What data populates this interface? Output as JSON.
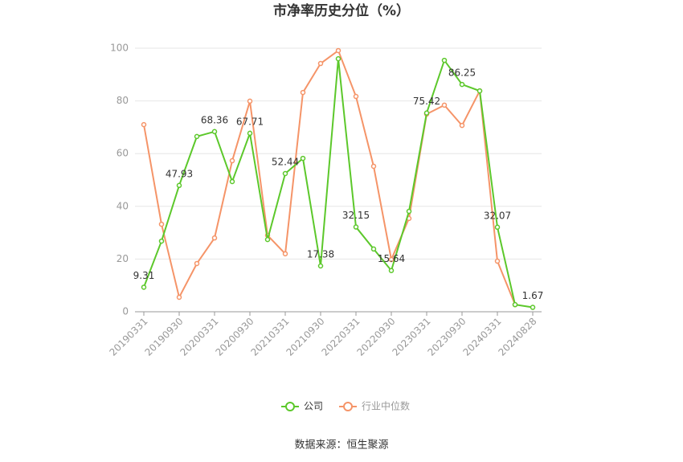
{
  "chart_data": {
    "type": "line",
    "title": "市净率历史分位（%）",
    "categories": [
      "20190331",
      null,
      "20190930",
      null,
      "20200331",
      null,
      "20200930",
      null,
      "20210331",
      null,
      "20210930",
      null,
      "20220331",
      null,
      "20220930",
      null,
      "20230331",
      null,
      "20230930",
      null,
      "20240331",
      null,
      "20240828"
    ],
    "series": [
      {
        "name": "公司",
        "color": "#5cc82b",
        "values": [
          9.31,
          26.8,
          47.93,
          66.5,
          68.36,
          49.4,
          67.71,
          27.4,
          52.44,
          58.2,
          17.38,
          96.0,
          32.15,
          23.8,
          15.64,
          38.1,
          75.42,
          95.4,
          86.25,
          83.8,
          32.07,
          2.7,
          1.67
        ],
        "value_labels": [
          "9.31",
          null,
          "47.93",
          null,
          "68.36",
          null,
          "67.71",
          null,
          "52.44",
          null,
          "17.38",
          null,
          "32.15",
          null,
          "15.64",
          null,
          "75.42",
          null,
          "86.25",
          null,
          "32.07",
          null,
          "1.67"
        ]
      },
      {
        "name": "行业中位数",
        "color": "#f59468",
        "values": [
          71.0,
          33.2,
          5.5,
          18.3,
          28.0,
          57.3,
          79.9,
          29.0,
          22.0,
          83.2,
          94.2,
          99.1,
          81.7,
          55.2,
          19.8,
          35.4,
          75.0,
          78.4,
          70.7,
          83.8,
          19.2,
          2.7,
          null
        ]
      }
    ],
    "ylim": [
      0,
      100
    ],
    "yticks": [
      0,
      20,
      40,
      60,
      80,
      100
    ],
    "grid": true,
    "source": "数据来源：恒生聚源"
  }
}
